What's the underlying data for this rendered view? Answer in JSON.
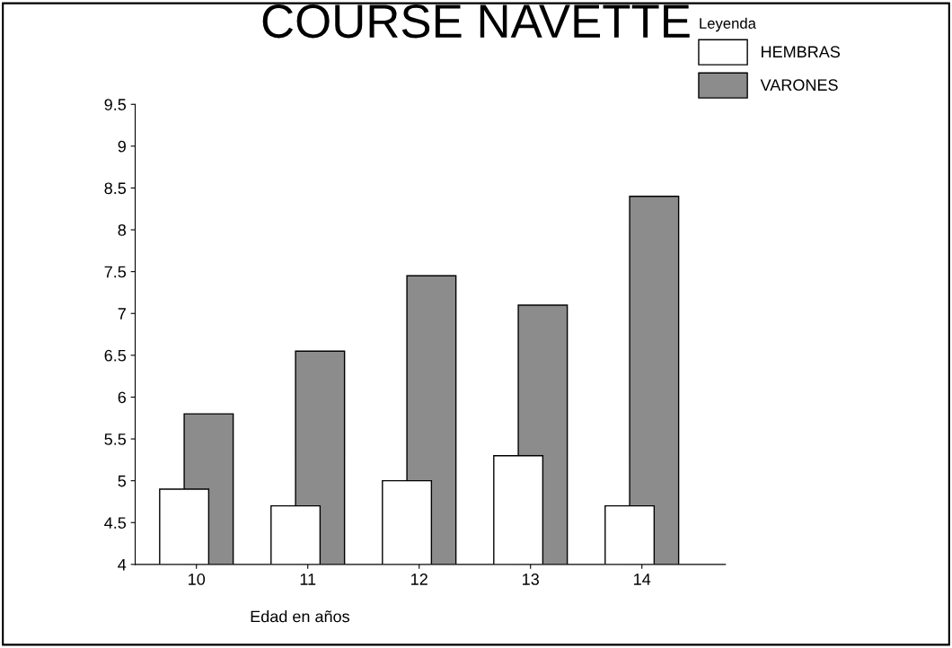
{
  "chart_data": {
    "type": "bar",
    "title": "COURSE NAVETTE",
    "xlabel": "Edad en años",
    "legend_title": "Leyenda",
    "categories": [
      "10",
      "11",
      "12",
      "13",
      "14"
    ],
    "series": [
      {
        "name": "HEMBRAS",
        "color": "#ffffff",
        "values": [
          4.9,
          4.7,
          5.0,
          5.3,
          4.7
        ]
      },
      {
        "name": "VARONES",
        "color": "#8c8c8c",
        "values": [
          5.8,
          6.55,
          7.45,
          7.1,
          8.4
        ]
      }
    ],
    "ylim": [
      4,
      9.5
    ],
    "yticks": [
      4,
      4.5,
      5,
      5.5,
      6,
      6.5,
      7,
      7.5,
      8,
      8.5,
      9,
      9.5
    ],
    "grid": false,
    "legend": "top right"
  }
}
